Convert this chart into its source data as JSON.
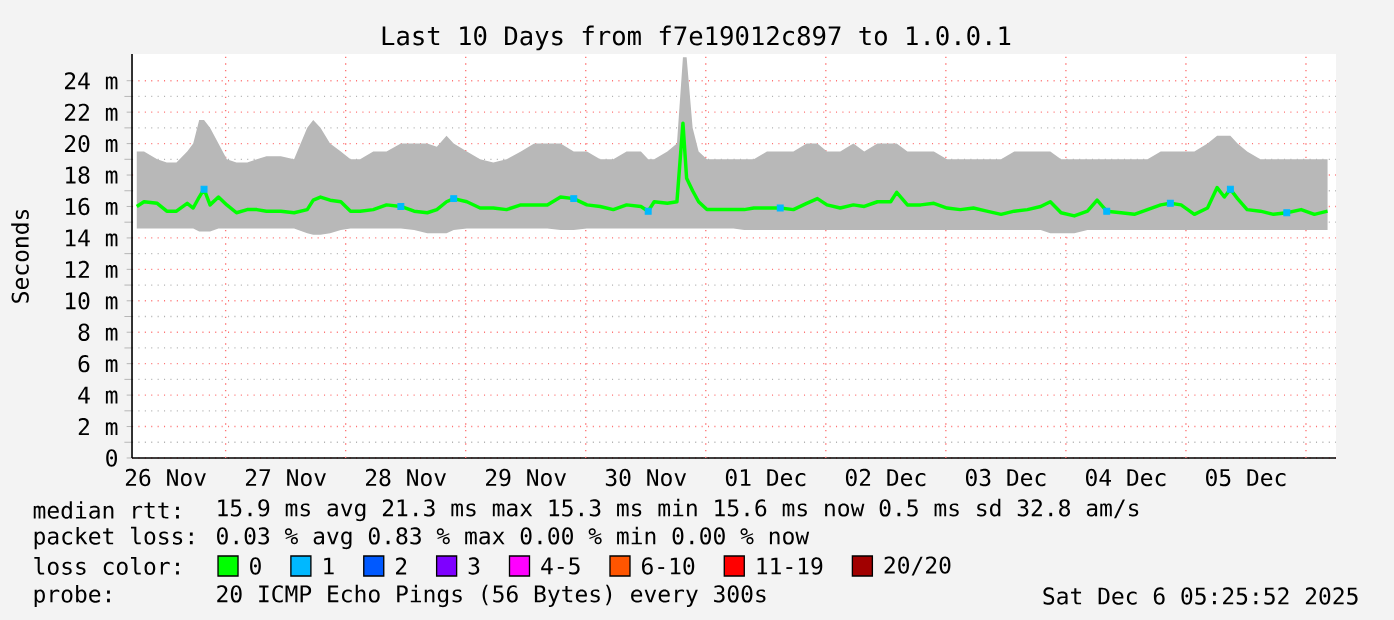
{
  "chart_data": {
    "type": "line",
    "title": "Last 10 Days from f7e19012c897 to 1.0.0.1",
    "ylabel": "Seconds",
    "xlim": [
      "2025-11-26T05:17",
      "2025-12-06T06:00"
    ],
    "ylim": [
      0,
      25.7
    ],
    "xticks": [
      {
        "value": "2025-11-26T12:00",
        "label": "26 Nov"
      },
      {
        "value": "2025-11-27T12:00",
        "label": "27 Nov"
      },
      {
        "value": "2025-11-28T12:00",
        "label": "28 Nov"
      },
      {
        "value": "2025-11-29T12:00",
        "label": "29 Nov"
      },
      {
        "value": "2025-11-30T12:00",
        "label": "30 Nov"
      },
      {
        "value": "2025-12-01T12:00",
        "label": "01 Dec"
      },
      {
        "value": "2025-12-02T12:00",
        "label": "02 Dec"
      },
      {
        "value": "2025-12-03T12:00",
        "label": "03 Dec"
      },
      {
        "value": "2025-12-04T12:00",
        "label": "04 Dec"
      },
      {
        "value": "2025-12-05T12:00",
        "label": "05 Dec"
      },
      {
        "value": "2025-11-27",
        "label": null
      },
      {
        "value": "2025-11-28",
        "label": null
      },
      {
        "value": "2025-11-29",
        "label": null
      },
      {
        "value": "2025-11-30",
        "label": null
      },
      {
        "value": "2025-12-01",
        "label": null
      },
      {
        "value": "2025-12-02",
        "label": null
      },
      {
        "value": "2025-12-03",
        "label": null
      },
      {
        "value": "2025-12-04",
        "label": null
      },
      {
        "value": "2025-12-05",
        "label": null
      },
      {
        "value": "2025-12-06",
        "label": null
      }
    ],
    "yticks": [
      0,
      {
        "value": 2,
        "label": "2 m"
      },
      {
        "value": 4,
        "label": "4 m"
      },
      {
        "value": 6,
        "label": "6 m"
      },
      {
        "value": 8,
        "label": "8 m"
      },
      {
        "value": 10,
        "label": "10 m"
      },
      {
        "value": 12,
        "label": "12 m"
      },
      {
        "value": 14,
        "label": "14 m"
      },
      {
        "value": 16,
        "label": "16 m"
      },
      {
        "value": 18,
        "label": "18 m"
      },
      {
        "value": 20,
        "label": "20 m"
      },
      {
        "value": 22,
        "label": "22 m"
      },
      {
        "value": 24,
        "label": "24 m"
      }
    ],
    "grid": true,
    "legend": "bottom",
    "legend_title": "loss color:",
    "annotations": [
      "median rtt:",
      "15.9 ms avg   21.3 ms max   15.3 ms min   15.6 ms now   0.5 ms sd   32.8    am/s",
      "packet loss:",
      "0.03 % avg   0.83 % max   0.00 % min   0.00 % now",
      "probe:",
      "20 ICMP Echo Pings (56 Bytes) every 300s",
      "Sat Dec  6 05:25:52 2025"
    ],
    "series": [
      {
        "name": "0",
        "color": "#00ff00",
        "x": [
          "2025-11-26T06:14",
          "2025-11-26T07:41",
          "2025-11-26T10:19",
          "2025-11-26T12:14",
          "2025-11-26T14:10",
          "2025-11-26T16:19",
          "2025-11-26T17:31",
          "2025-11-26T18:43",
          "2025-11-26T19:41",
          "2025-11-26T20:53",
          "2025-11-26T22:34",
          "2025-11-27T00:14",
          "2025-11-27T02:10",
          "2025-11-27T04:19",
          "2025-11-27T06:14",
          "2025-11-27T08:10",
          "2025-11-27T11:02",
          "2025-11-27T13:41",
          "2025-11-27T16:19",
          "2025-11-27T17:31",
          "2025-11-27T18:58",
          "2025-11-27T20:53",
          "2025-11-27T23:02",
          "2025-11-28T00:58",
          "2025-11-28T02:53",
          "2025-11-28T05:31",
          "2025-11-28T08:10",
          "2025-11-28T11:02",
          "2025-11-28T13:41",
          "2025-11-28T16:19",
          "2025-11-28T18:14",
          "2025-11-28T20:10",
          "2025-11-28T21:36",
          "2025-11-29T00:14",
          "2025-11-29T02:53",
          "2025-11-29T05:31",
          "2025-11-29T08:10",
          "2025-11-29T11:02",
          "2025-11-29T13:41",
          "2025-11-29T16:19",
          "2025-11-29T18:58",
          "2025-11-29T21:36",
          "2025-11-30T00:14",
          "2025-11-30T02:53",
          "2025-11-30T05:31",
          "2025-11-30T08:10",
          "2025-11-30T11:02",
          "2025-11-30T12:29",
          "2025-11-30T13:41",
          "2025-11-30T16:19",
          "2025-11-30T18:14",
          "2025-11-30T19:26",
          "2025-11-30T20:10",
          "2025-11-30T21:22",
          "2025-11-30T22:34",
          "2025-12-01T00:14",
          "2025-12-01T02:53",
          "2025-12-01T05:31",
          "2025-12-01T07:41",
          "2025-12-01T09:36",
          "2025-12-01T12:14",
          "2025-12-01T14:53",
          "2025-12-01T17:31",
          "2025-12-01T20:10",
          "2025-12-01T22:19",
          "2025-12-02T00:14",
          "2025-12-02T02:53",
          "2025-12-02T05:31",
          "2025-12-02T07:41",
          "2025-12-02T10:19",
          "2025-12-02T12:58",
          "2025-12-02T14:10",
          "2025-12-02T16:19",
          "2025-12-02T18:58",
          "2025-12-02T21:36",
          "2025-12-03T00:14",
          "2025-12-03T02:53",
          "2025-12-03T05:31",
          "2025-12-03T08:10",
          "2025-12-03T11:02",
          "2025-12-03T13:41",
          "2025-12-03T16:19",
          "2025-12-03T18:58",
          "2025-12-03T20:53",
          "2025-12-03T23:02",
          "2025-12-04T01:41",
          "2025-12-04T04:19",
          "2025-12-04T06:14",
          "2025-12-04T08:10",
          "2025-12-04T11:02",
          "2025-12-04T13:41",
          "2025-12-04T16:19",
          "2025-12-04T18:58",
          "2025-12-04T20:53",
          "2025-12-04T23:02",
          "2025-12-05T01:41",
          "2025-12-05T04:19",
          "2025-12-05T06:14",
          "2025-12-05T07:41",
          "2025-12-05T08:53",
          "2025-12-05T10:19",
          "2025-12-05T12:14",
          "2025-12-05T14:53",
          "2025-12-05T17:31",
          "2025-12-05T20:10",
          "2025-12-05T23:02",
          "2025-12-06T01:41",
          "2025-12-06T04:19"
        ],
        "values": [
          16.0,
          16.3,
          16.2,
          15.7,
          15.7,
          16.2,
          15.9,
          16.6,
          17.1,
          16.1,
          16.6,
          16.1,
          15.6,
          15.8,
          15.8,
          15.7,
          15.7,
          15.6,
          15.8,
          16.4,
          16.6,
          16.4,
          16.3,
          15.7,
          15.7,
          15.8,
          16.1,
          16.0,
          15.7,
          15.6,
          15.8,
          16.3,
          16.5,
          16.3,
          15.9,
          15.9,
          15.8,
          16.1,
          16.1,
          16.1,
          16.6,
          16.5,
          16.1,
          16.0,
          15.8,
          16.1,
          16.0,
          15.7,
          16.3,
          16.2,
          16.3,
          21.3,
          17.8,
          17.0,
          16.3,
          15.8,
          15.8,
          15.8,
          15.8,
          15.9,
          15.9,
          15.9,
          15.8,
          16.2,
          16.5,
          16.1,
          15.9,
          16.1,
          16.0,
          16.3,
          16.3,
          16.9,
          16.1,
          16.1,
          16.2,
          15.9,
          15.8,
          15.9,
          15.7,
          15.5,
          15.7,
          15.8,
          16.0,
          16.3,
          15.6,
          15.4,
          15.7,
          16.4,
          15.7,
          15.6,
          15.5,
          15.8,
          16.1,
          16.2,
          16.1,
          15.5,
          15.9,
          17.2,
          16.6,
          17.1,
          16.5,
          15.8,
          15.7,
          15.5,
          15.6,
          15.8,
          15.5,
          15.7
        ],
        "lower": [
          14.6,
          14.6,
          14.6,
          14.6,
          14.6,
          14.6,
          14.6,
          14.4,
          14.4,
          14.4,
          14.6,
          14.6,
          14.6,
          14.6,
          14.6,
          14.6,
          14.6,
          14.6,
          14.3,
          14.2,
          14.2,
          14.3,
          14.5,
          14.6,
          14.6,
          14.6,
          14.6,
          14.6,
          14.5,
          14.3,
          14.3,
          14.3,
          14.5,
          14.6,
          14.6,
          14.6,
          14.6,
          14.6,
          14.6,
          14.6,
          14.5,
          14.5,
          14.6,
          14.6,
          14.6,
          14.6,
          14.6,
          14.6,
          14.6,
          14.6,
          14.6,
          14.6,
          14.6,
          14.6,
          14.6,
          14.6,
          14.6,
          14.6,
          14.5,
          14.5,
          14.5,
          14.5,
          14.5,
          14.5,
          14.5,
          14.5,
          14.5,
          14.5,
          14.5,
          14.5,
          14.5,
          14.5,
          14.5,
          14.5,
          14.5,
          14.5,
          14.5,
          14.5,
          14.5,
          14.5,
          14.5,
          14.5,
          14.5,
          14.3,
          14.3,
          14.3,
          14.5,
          14.5,
          14.5,
          14.5,
          14.5,
          14.5,
          14.5,
          14.5,
          14.5,
          14.5,
          14.5,
          14.5,
          14.5,
          14.5,
          14.5,
          14.5,
          14.5,
          14.5,
          14.5,
          14.5,
          14.5,
          14.5
        ],
        "upper": [
          19.5,
          19.5,
          19.0,
          18.8,
          18.8,
          19.5,
          20.0,
          21.5,
          21.5,
          21.0,
          20.0,
          19.0,
          18.8,
          18.8,
          19.0,
          19.2,
          19.2,
          19.0,
          21.0,
          21.5,
          21.0,
          20.0,
          19.5,
          19.0,
          19.0,
          19.5,
          19.5,
          20.0,
          20.0,
          20.0,
          19.8,
          20.5,
          20.0,
          19.5,
          19.0,
          18.8,
          19.0,
          19.5,
          20.0,
          20.0,
          20.0,
          19.5,
          19.5,
          19.0,
          19.0,
          19.5,
          19.5,
          19.0,
          19.0,
          19.5,
          20.0,
          25.5,
          25.5,
          21.0,
          19.5,
          19.0,
          19.0,
          19.0,
          19.0,
          19.0,
          19.5,
          19.5,
          19.5,
          20.0,
          20.0,
          19.5,
          19.5,
          20.0,
          19.5,
          20.0,
          20.0,
          20.0,
          19.5,
          19.5,
          19.5,
          19.0,
          19.0,
          19.0,
          19.0,
          19.0,
          19.5,
          19.5,
          19.5,
          19.5,
          19.0,
          19.0,
          19.0,
          19.0,
          19.0,
          19.0,
          19.0,
          19.0,
          19.5,
          19.5,
          19.5,
          19.5,
          20.0,
          20.5,
          20.5,
          20.5,
          20.0,
          19.5,
          19.0,
          19.0,
          19.0,
          19.0,
          19.0,
          19.0
        ]
      },
      {
        "name": "1",
        "type": "scatter",
        "marker": "square",
        "color": "#00b8ff",
        "x": [
          "2025-11-26T19:41",
          "2025-11-28T11:02",
          "2025-11-28T21:36",
          "2025-11-29T21:36",
          "2025-11-30T12:29",
          "2025-12-01T14:53",
          "2025-12-04T08:10",
          "2025-12-04T20:53",
          "2025-12-05T08:53",
          "2025-12-05T20:10"
        ],
        "values": [
          17.1,
          16.0,
          16.5,
          16.5,
          15.7,
          15.9,
          15.7,
          16.2,
          17.1,
          15.6
        ]
      },
      {
        "name": "2",
        "type": "scatter",
        "marker": "square",
        "color": "#0059ff"
      },
      {
        "name": "3",
        "type": "scatter",
        "marker": "square",
        "color": "#7e00ff"
      },
      {
        "name": "4-5",
        "type": "scatter",
        "marker": "square",
        "color": "#ff00ff"
      },
      {
        "name": "6-10",
        "type": "scatter",
        "marker": "square",
        "color": "#ff5500"
      },
      {
        "name": "11-19",
        "type": "scatter",
        "marker": "square",
        "color": "#ff0000"
      },
      {
        "name": "20/20",
        "type": "scatter",
        "marker": "square",
        "color": "#a10000"
      }
    ]
  }
}
